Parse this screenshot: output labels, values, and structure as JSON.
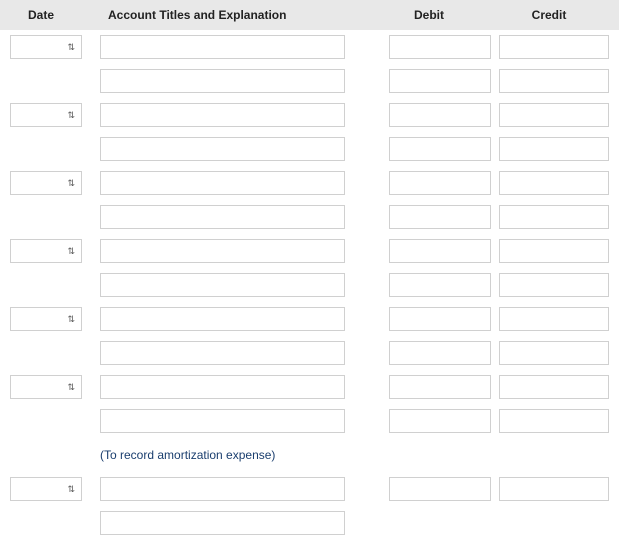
{
  "columns": {
    "date": "Date",
    "account": "Account Titles and Explanation",
    "debit": "Debit",
    "credit": "Credit"
  },
  "rows": [
    {
      "type": "entry",
      "showDate": true,
      "date": "",
      "account": "",
      "debit": "",
      "credit": ""
    },
    {
      "type": "entry",
      "showDate": false,
      "date": "",
      "account": "",
      "debit": "",
      "credit": ""
    },
    {
      "type": "entry",
      "showDate": true,
      "date": "",
      "account": "",
      "debit": "",
      "credit": ""
    },
    {
      "type": "entry",
      "showDate": false,
      "date": "",
      "account": "",
      "debit": "",
      "credit": ""
    },
    {
      "type": "entry",
      "showDate": true,
      "date": "",
      "account": "",
      "debit": "",
      "credit": ""
    },
    {
      "type": "entry",
      "showDate": false,
      "date": "",
      "account": "",
      "debit": "",
      "credit": ""
    },
    {
      "type": "entry",
      "showDate": true,
      "date": "",
      "account": "",
      "debit": "",
      "credit": ""
    },
    {
      "type": "entry",
      "showDate": false,
      "date": "",
      "account": "",
      "debit": "",
      "credit": ""
    },
    {
      "type": "entry",
      "showDate": true,
      "date": "",
      "account": "",
      "debit": "",
      "credit": ""
    },
    {
      "type": "entry",
      "showDate": false,
      "date": "",
      "account": "",
      "debit": "",
      "credit": ""
    },
    {
      "type": "entry",
      "showDate": true,
      "date": "",
      "account": "",
      "debit": "",
      "credit": ""
    },
    {
      "type": "entry",
      "showDate": false,
      "date": "",
      "account": "",
      "debit": "",
      "credit": ""
    },
    {
      "type": "explanation",
      "text": "(To record amortization expense)"
    },
    {
      "type": "entry",
      "showDate": true,
      "date": "",
      "account": "",
      "debit": "",
      "credit": ""
    },
    {
      "type": "entry",
      "showDate": false,
      "date": "",
      "account": "",
      "debit": "",
      "credit": ""
    }
  ],
  "style": {
    "header_bg": "#e8e8e8",
    "border_color": "#d0d0d0",
    "explanation_color": "#1a3e6e",
    "font_family": "Arial",
    "header_fontsize": 12,
    "body_fontsize": 12
  }
}
